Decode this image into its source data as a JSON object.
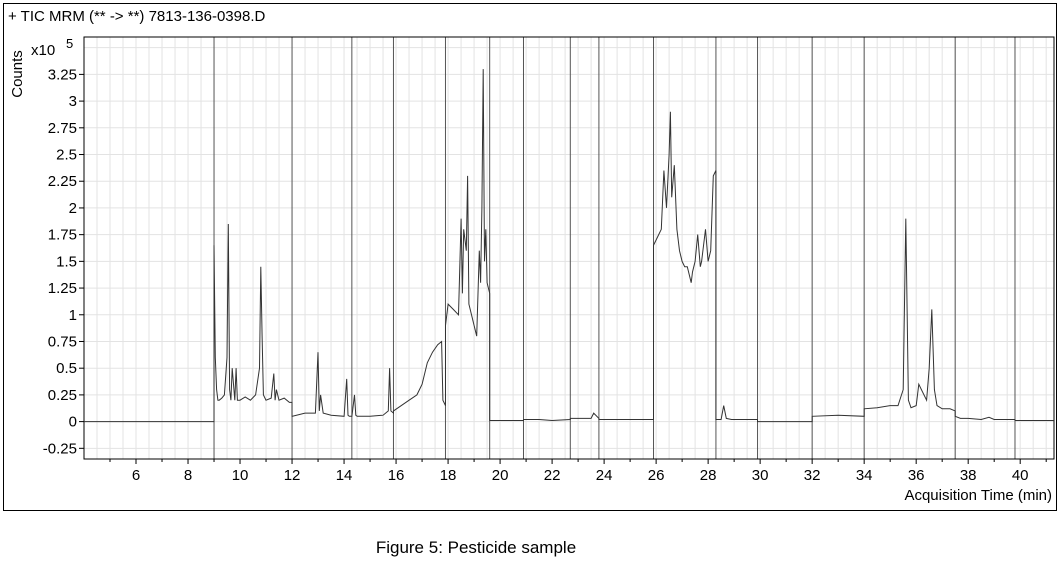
{
  "chart_data": {
    "type": "line",
    "title": "+ TIC MRM (** -> **) 7813-136-0398.D",
    "ylabel": "Counts",
    "y_multiplier": "x10",
    "y_exponent": "5",
    "xlabel": "Acquisition Time (min)",
    "xlim": [
      4,
      41.3
    ],
    "ylim": [
      -0.35,
      3.6
    ],
    "grid": true,
    "x_ticks": [
      "6",
      "8",
      "10",
      "12",
      "14",
      "16",
      "18",
      "20",
      "22",
      "24",
      "26",
      "28",
      "30",
      "32",
      "34",
      "36",
      "38",
      "40"
    ],
    "y_ticks": [
      "-0.25",
      "0",
      "0.25",
      "0.5",
      "0.75",
      "1",
      "1.25",
      "1.5",
      "1.75",
      "2",
      "2.25",
      "2.5",
      "2.75",
      "3",
      "3.25"
    ],
    "segment_boundaries": [
      9.0,
      12.0,
      14.3,
      15.9,
      17.9,
      19.6,
      20.9,
      22.7,
      23.8,
      25.9,
      28.3,
      29.9,
      32.0,
      34.0,
      37.5,
      39.8
    ],
    "series": [
      {
        "x": [
          4.0,
          9.0,
          9.0,
          9.05,
          9.1,
          9.15,
          9.2,
          9.3,
          9.4,
          9.5,
          9.55,
          9.6,
          9.65,
          9.7,
          9.8,
          9.85,
          9.9,
          10.0,
          10.2,
          10.4,
          10.6,
          10.75,
          10.8,
          10.85,
          10.9,
          11.0,
          11.2,
          11.3,
          11.35,
          11.4,
          11.5,
          11.7,
          11.9,
          12.0,
          12.0,
          12.5,
          12.9,
          13.0,
          13.05,
          13.1,
          13.2,
          13.5,
          14.0,
          14.1,
          14.15,
          14.2,
          14.3,
          14.3,
          14.4,
          14.45,
          14.5,
          14.6,
          15.0,
          15.5,
          15.7,
          15.75,
          15.8,
          15.9,
          15.9,
          16.2,
          16.5,
          16.8,
          17.0,
          17.2,
          17.4,
          17.6,
          17.75,
          17.8,
          17.9,
          17.9,
          18.0,
          18.2,
          18.4,
          18.5,
          18.55,
          18.6,
          18.7,
          18.75,
          18.8,
          18.9,
          19.0,
          19.1,
          19.2,
          19.25,
          19.3,
          19.35,
          19.4,
          19.45,
          19.5,
          19.6,
          19.6,
          20.0,
          20.5,
          20.9,
          20.9,
          21.5,
          22.0,
          22.7,
          22.7,
          23.2,
          23.5,
          23.6,
          23.8,
          23.8,
          24.5,
          25.0,
          25.9,
          25.9,
          26.0,
          26.1,
          26.2,
          26.3,
          26.4,
          26.5,
          26.55,
          26.6,
          26.7,
          26.8,
          26.9,
          27.0,
          27.1,
          27.2,
          27.3,
          27.35,
          27.4,
          27.5,
          27.6,
          27.7,
          27.75,
          27.8,
          27.9,
          28.0,
          28.1,
          28.2,
          28.3,
          28.3,
          28.5,
          28.6,
          28.7,
          28.9,
          29.2,
          29.9,
          29.9,
          31.0,
          32.0,
          32.0,
          33.0,
          34.0,
          34.0,
          34.5,
          35.0,
          35.3,
          35.5,
          35.6,
          35.7,
          35.8,
          36.0,
          36.1,
          36.2,
          36.4,
          36.5,
          36.6,
          36.7,
          36.8,
          37.0,
          37.3,
          37.5,
          37.5,
          37.7,
          38.0,
          38.5,
          38.8,
          39.0,
          39.5,
          39.8,
          39.8,
          40.5,
          41.3
        ],
        "y": [
          0.0,
          0.0,
          1.65,
          0.6,
          0.3,
          0.2,
          0.2,
          0.22,
          0.25,
          0.6,
          1.85,
          0.3,
          0.2,
          0.5,
          0.2,
          0.5,
          0.2,
          0.2,
          0.23,
          0.2,
          0.25,
          0.5,
          1.45,
          0.8,
          0.25,
          0.2,
          0.22,
          0.45,
          0.2,
          0.3,
          0.2,
          0.22,
          0.18,
          0.18,
          0.05,
          0.08,
          0.08,
          0.65,
          0.1,
          0.25,
          0.08,
          0.06,
          0.05,
          0.4,
          0.06,
          0.05,
          0.05,
          0.05,
          0.25,
          0.06,
          0.05,
          0.05,
          0.05,
          0.06,
          0.1,
          0.5,
          0.1,
          0.08,
          0.1,
          0.15,
          0.2,
          0.25,
          0.35,
          0.55,
          0.65,
          0.72,
          0.75,
          0.2,
          0.15,
          0.9,
          1.1,
          1.05,
          1.0,
          1.9,
          1.2,
          1.8,
          1.6,
          2.3,
          1.1,
          1.0,
          0.9,
          0.8,
          1.6,
          1.3,
          2.0,
          3.3,
          1.5,
          1.8,
          1.3,
          1.2,
          0.01,
          0.01,
          0.01,
          0.01,
          0.02,
          0.02,
          0.01,
          0.02,
          0.03,
          0.03,
          0.03,
          0.08,
          0.03,
          0.02,
          0.02,
          0.02,
          0.02,
          1.65,
          1.7,
          1.75,
          1.8,
          2.35,
          2.0,
          2.5,
          2.9,
          2.1,
          2.4,
          1.8,
          1.6,
          1.5,
          1.45,
          1.45,
          1.35,
          1.3,
          1.4,
          1.5,
          1.75,
          1.45,
          1.5,
          1.6,
          1.8,
          1.5,
          1.6,
          2.3,
          2.35,
          0.02,
          0.02,
          0.15,
          0.03,
          0.02,
          0.02,
          0.02,
          0.0,
          0.0,
          0.0,
          0.05,
          0.06,
          0.05,
          0.12,
          0.13,
          0.15,
          0.15,
          0.3,
          1.9,
          0.2,
          0.13,
          0.15,
          0.35,
          0.3,
          0.2,
          0.5,
          1.05,
          0.3,
          0.15,
          0.12,
          0.12,
          0.1,
          0.05,
          0.03,
          0.03,
          0.02,
          0.04,
          0.02,
          0.02,
          0.02,
          0.01,
          0.01,
          0.01
        ]
      }
    ]
  },
  "caption": "Figure 5: Pesticide sample"
}
